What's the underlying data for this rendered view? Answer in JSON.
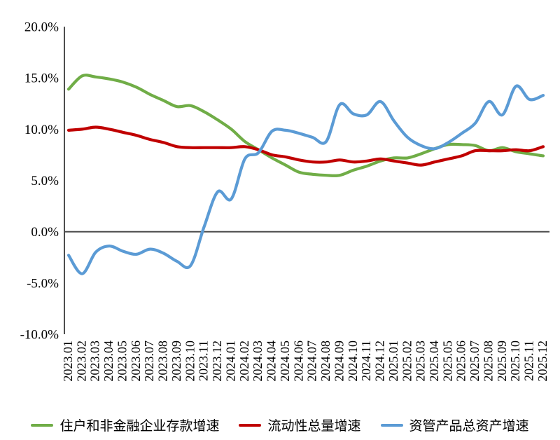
{
  "chart_data": {
    "type": "line",
    "title": "",
    "xlabel": "",
    "ylabel": "",
    "ylim": [
      -10,
      20
    ],
    "yticks": [
      20,
      15,
      10,
      5,
      0,
      -5,
      -10
    ],
    "ytick_labels": [
      "20.0%",
      "15.0%",
      "10.0%",
      "5.0%",
      "0.0%",
      "-5.0%",
      "-10.0%"
    ],
    "grid": false,
    "legend_position": "bottom",
    "axis_color": "#4d4d4d",
    "text_color": "#000000",
    "x_labels": [
      "2023.01",
      "2023.02",
      "2023.03",
      "2023.04",
      "2023.05",
      "2023.06",
      "2023.07",
      "2023.08",
      "2023.09",
      "2023.10",
      "2023.11",
      "2023.12",
      "2024.01",
      "2024.02",
      "2024.03",
      "2024.04",
      "2024.05",
      "2024.06",
      "2024.07",
      "2024.08",
      "2024.09",
      "2024.10",
      "2024.11",
      "2024.12",
      "2025.01",
      "2025.02",
      "2025.03",
      "2025.04",
      "2025.05",
      "2025.06",
      "2025.07",
      "2025.08",
      "2025.09",
      "2025.10",
      "2025.11",
      "2025.12"
    ],
    "series": [
      {
        "name": "住户和非金融企业存款增速",
        "color": "#70AD47",
        "values": [
          13.9,
          15.2,
          15.1,
          14.9,
          14.6,
          14.1,
          13.4,
          12.8,
          12.2,
          12.3,
          11.7,
          10.9,
          10.0,
          8.8,
          8.0,
          7.2,
          6.5,
          5.8,
          5.6,
          5.5,
          5.5,
          6.0,
          6.4,
          6.9,
          7.2,
          7.2,
          7.6,
          8.1,
          8.5,
          8.5,
          8.4,
          7.9,
          8.2,
          7.8,
          7.6,
          7.4
        ]
      },
      {
        "name": "流动性总量增速",
        "color": "#C00000",
        "values": [
          9.9,
          10.0,
          10.2,
          10.0,
          9.7,
          9.4,
          9.0,
          8.7,
          8.3,
          8.2,
          8.2,
          8.2,
          8.2,
          8.3,
          8.0,
          7.5,
          7.3,
          7.0,
          6.8,
          6.8,
          7.0,
          6.8,
          6.9,
          7.1,
          6.9,
          6.7,
          6.5,
          6.8,
          7.1,
          7.4,
          7.9,
          7.9,
          7.9,
          8.0,
          7.9,
          8.3
        ]
      },
      {
        "name": "资管产品总资产增速",
        "color": "#5B9BD5",
        "values": [
          -2.3,
          -4.1,
          -2.0,
          -1.4,
          -1.9,
          -2.2,
          -1.7,
          -2.1,
          -2.9,
          -3.3,
          0.5,
          3.9,
          3.2,
          7.1,
          7.7,
          9.8,
          9.9,
          9.6,
          9.2,
          8.8,
          12.4,
          11.5,
          11.4,
          12.7,
          10.8,
          9.2,
          8.4,
          8.1,
          8.7,
          9.6,
          10.6,
          12.7,
          11.4,
          14.2,
          12.9,
          13.3
        ]
      }
    ]
  }
}
